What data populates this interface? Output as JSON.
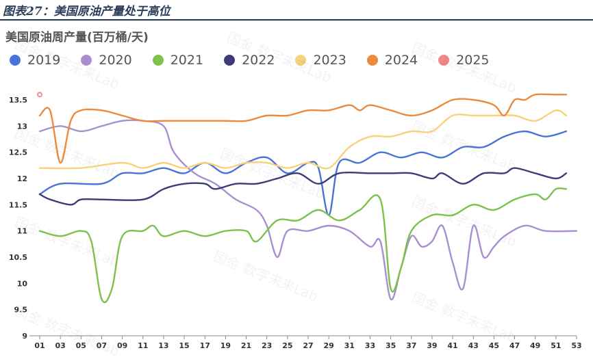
{
  "figure_title": "图表27：美国原油产量处于高位",
  "chart_data": {
    "type": "line",
    "title": "美国原油周产量(百万桶/天)",
    "xlabel": "",
    "ylabel": "",
    "ylim": [
      9,
      13.8
    ],
    "xlim": [
      1,
      53
    ],
    "y_ticks": [
      "9",
      "9.5",
      "10",
      "10.5",
      "11",
      "11.5",
      "12",
      "12.5",
      "13",
      "13.5"
    ],
    "x_ticks": [
      "01",
      "03",
      "05",
      "07",
      "09",
      "11",
      "13",
      "15",
      "17",
      "19",
      "21",
      "23",
      "25",
      "27",
      "29",
      "31",
      "33",
      "35",
      "37",
      "39",
      "41",
      "43",
      "45",
      "47",
      "49",
      "51",
      "53"
    ],
    "legend_position": "top",
    "grid": false,
    "series": [
      {
        "name": "2019",
        "color": "#4a72d6",
        "points": [
          [
            1,
            11.7
          ],
          [
            3,
            11.9
          ],
          [
            7,
            11.9
          ],
          [
            9,
            12.1
          ],
          [
            11,
            12.1
          ],
          [
            13,
            12.2
          ],
          [
            15,
            12.1
          ],
          [
            17,
            12.3
          ],
          [
            19,
            12.1
          ],
          [
            21,
            12.3
          ],
          [
            23,
            12.4
          ],
          [
            25,
            12.1
          ],
          [
            27,
            12.3
          ],
          [
            28,
            12.2
          ],
          [
            29,
            11.3
          ],
          [
            30,
            12.3
          ],
          [
            32,
            12.3
          ],
          [
            34,
            12.5
          ],
          [
            36,
            12.4
          ],
          [
            38,
            12.5
          ],
          [
            40,
            12.4
          ],
          [
            42,
            12.6
          ],
          [
            44,
            12.6
          ],
          [
            46,
            12.8
          ],
          [
            48,
            12.9
          ],
          [
            50,
            12.8
          ],
          [
            52,
            12.9
          ]
        ]
      },
      {
        "name": "2020",
        "color": "#a98fcf",
        "points": [
          [
            1,
            12.9
          ],
          [
            3,
            13.0
          ],
          [
            5,
            12.9
          ],
          [
            7,
            13.0
          ],
          [
            9,
            13.1
          ],
          [
            11,
            13.1
          ],
          [
            13,
            13.0
          ],
          [
            14,
            12.5
          ],
          [
            16,
            12.1
          ],
          [
            18,
            11.9
          ],
          [
            20,
            11.6
          ],
          [
            22,
            11.4
          ],
          [
            23,
            11.1
          ],
          [
            24,
            10.5
          ],
          [
            25,
            11.0
          ],
          [
            27,
            11.0
          ],
          [
            29,
            11.1
          ],
          [
            31,
            11.0
          ],
          [
            33,
            10.7
          ],
          [
            34,
            10.8
          ],
          [
            35,
            9.7
          ],
          [
            36,
            10.3
          ],
          [
            37,
            10.9
          ],
          [
            38,
            10.7
          ],
          [
            39,
            10.8
          ],
          [
            40,
            11.1
          ],
          [
            41,
            10.4
          ],
          [
            42,
            9.9
          ],
          [
            43,
            11.1
          ],
          [
            44,
            10.5
          ],
          [
            45,
            10.7
          ],
          [
            46,
            10.9
          ],
          [
            48,
            11.1
          ],
          [
            50,
            11.0
          ],
          [
            53,
            11.0
          ]
        ]
      },
      {
        "name": "2021",
        "color": "#7cc24a",
        "points": [
          [
            1,
            11.0
          ],
          [
            3,
            10.9
          ],
          [
            5,
            11.0
          ],
          [
            6,
            10.8
          ],
          [
            7,
            9.7
          ],
          [
            8,
            9.9
          ],
          [
            9,
            10.9
          ],
          [
            11,
            11.0
          ],
          [
            12,
            11.1
          ],
          [
            13,
            10.9
          ],
          [
            15,
            11.0
          ],
          [
            17,
            10.9
          ],
          [
            19,
            11.0
          ],
          [
            21,
            11.0
          ],
          [
            22,
            10.8
          ],
          [
            24,
            11.2
          ],
          [
            26,
            11.2
          ],
          [
            28,
            11.4
          ],
          [
            30,
            11.2
          ],
          [
            32,
            11.4
          ],
          [
            34,
            11.6
          ],
          [
            35,
            9.9
          ],
          [
            36,
            10.3
          ],
          [
            37,
            11.0
          ],
          [
            39,
            11.3
          ],
          [
            41,
            11.3
          ],
          [
            43,
            11.5
          ],
          [
            45,
            11.4
          ],
          [
            47,
            11.6
          ],
          [
            49,
            11.7
          ],
          [
            50,
            11.6
          ],
          [
            51,
            11.8
          ],
          [
            52,
            11.8
          ]
        ]
      },
      {
        "name": "2022",
        "color": "#3e3b78",
        "points": [
          [
            1,
            11.7
          ],
          [
            2,
            11.6
          ],
          [
            4,
            11.5
          ],
          [
            5,
            11.6
          ],
          [
            7,
            11.6
          ],
          [
            11,
            11.6
          ],
          [
            13,
            11.8
          ],
          [
            15,
            11.9
          ],
          [
            17,
            11.9
          ],
          [
            18,
            11.8
          ],
          [
            20,
            11.9
          ],
          [
            22,
            11.9
          ],
          [
            24,
            12.0
          ],
          [
            26,
            12.1
          ],
          [
            28,
            11.9
          ],
          [
            30,
            12.1
          ],
          [
            33,
            12.1
          ],
          [
            35,
            12.1
          ],
          [
            37,
            12.1
          ],
          [
            39,
            12.0
          ],
          [
            40,
            12.1
          ],
          [
            42,
            11.9
          ],
          [
            44,
            12.1
          ],
          [
            46,
            12.1
          ],
          [
            47,
            12.2
          ],
          [
            49,
            12.1
          ],
          [
            51,
            12.0
          ],
          [
            52,
            12.1
          ]
        ]
      },
      {
        "name": "2023",
        "color": "#f7d27a",
        "points": [
          [
            1,
            12.2
          ],
          [
            5,
            12.2
          ],
          [
            9,
            12.3
          ],
          [
            11,
            12.2
          ],
          [
            13,
            12.3
          ],
          [
            15,
            12.2
          ],
          [
            17,
            12.3
          ],
          [
            19,
            12.2
          ],
          [
            21,
            12.3
          ],
          [
            23,
            12.3
          ],
          [
            25,
            12.2
          ],
          [
            27,
            12.3
          ],
          [
            29,
            12.2
          ],
          [
            31,
            12.6
          ],
          [
            33,
            12.8
          ],
          [
            35,
            12.8
          ],
          [
            37,
            12.9
          ],
          [
            39,
            12.9
          ],
          [
            41,
            13.2
          ],
          [
            43,
            13.2
          ],
          [
            45,
            13.2
          ],
          [
            47,
            13.2
          ],
          [
            49,
            13.1
          ],
          [
            51,
            13.3
          ],
          [
            52,
            13.2
          ]
        ]
      },
      {
        "name": "2024",
        "color": "#ec8a3c",
        "points": [
          [
            1,
            13.2
          ],
          [
            2,
            13.3
          ],
          [
            3,
            12.3
          ],
          [
            4,
            13.1
          ],
          [
            5,
            13.3
          ],
          [
            7,
            13.3
          ],
          [
            9,
            13.2
          ],
          [
            11,
            13.1
          ],
          [
            13,
            13.1
          ],
          [
            15,
            13.1
          ],
          [
            17,
            13.1
          ],
          [
            19,
            13.1
          ],
          [
            21,
            13.1
          ],
          [
            23,
            13.2
          ],
          [
            25,
            13.2
          ],
          [
            27,
            13.3
          ],
          [
            29,
            13.3
          ],
          [
            31,
            13.4
          ],
          [
            32,
            13.3
          ],
          [
            33,
            13.4
          ],
          [
            35,
            13.3
          ],
          [
            37,
            13.2
          ],
          [
            39,
            13.3
          ],
          [
            41,
            13.5
          ],
          [
            43,
            13.5
          ],
          [
            45,
            13.4
          ],
          [
            46,
            13.2
          ],
          [
            47,
            13.5
          ],
          [
            48,
            13.5
          ],
          [
            49,
            13.6
          ],
          [
            51,
            13.6
          ],
          [
            52,
            13.6
          ]
        ]
      },
      {
        "name": "2025",
        "color": "#f08a8a",
        "points": [
          [
            1,
            13.6
          ]
        ]
      }
    ]
  },
  "watermark": "国金 数字未来Lab"
}
